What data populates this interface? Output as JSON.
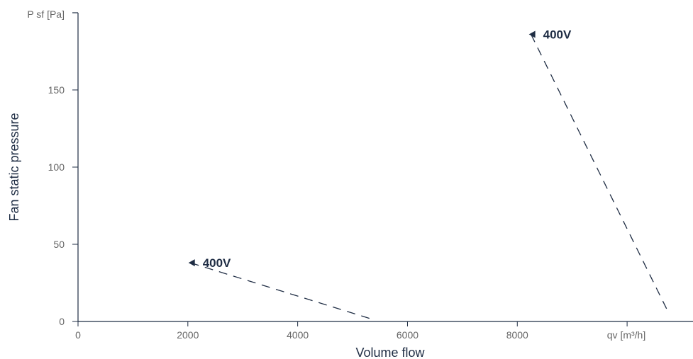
{
  "chart_data": {
    "type": "line",
    "xlabel": "Volume flow",
    "ylabel": "Fan static pressure",
    "x_unit_label": "qv [m³/h]",
    "y_unit_label": "P sf [Pa]",
    "xlim": [
      0,
      11200
    ],
    "ylim": [
      0,
      200
    ],
    "x_ticks": [
      0,
      2000,
      4000,
      6000,
      8000
    ],
    "y_ticks": [
      0,
      50,
      100,
      150
    ],
    "grid": false,
    "colors": {
      "axis": "#1f2d44",
      "series": "#1f2d44",
      "tick_text": "#666666"
    },
    "series": [
      {
        "name": "400V",
        "style": "dashed",
        "marker": "arrow-left",
        "x": [
          2050,
          5400
        ],
        "y": [
          38,
          1
        ]
      },
      {
        "name": "400V",
        "style": "dashed",
        "marker": "arrow-left",
        "x": [
          8250,
          10750
        ],
        "y": [
          186,
          6
        ]
      }
    ]
  }
}
